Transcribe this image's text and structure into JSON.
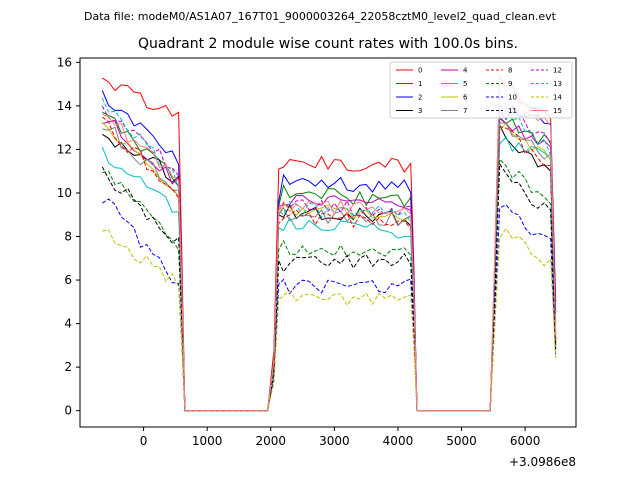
{
  "figure": {
    "suptitle": "Data file: modeM0/AS1A07_167T01_9000003264_22058cztM0_level2_quad_clean.evt"
  },
  "chart_data": {
    "type": "line",
    "title": "Quadrant 2 module wise count rates with 100.0s bins.",
    "xlabel": "",
    "ylabel": "",
    "x_offset_label": "+3.0986e8",
    "xlim": [
      -1000,
      6800
    ],
    "ylim": [
      -0.75,
      16.2
    ],
    "xticks": [
      0,
      1000,
      2000,
      3000,
      4000,
      5000,
      6000
    ],
    "yticks": [
      0,
      2,
      4,
      6,
      8,
      10,
      12,
      14,
      16
    ],
    "grid": false,
    "legend": {
      "position": "top-right",
      "columns": 4
    },
    "segments": [
      {
        "start": -650,
        "end": 550
      },
      {
        "start": 2200,
        "end": 4200
      },
      {
        "start": 5600,
        "end": 6400
      }
    ],
    "edge_points": [
      {
        "x": 650,
        "y": 0
      },
      {
        "x": 1950,
        "y": 0
      },
      {
        "x": 4300,
        "y": 0
      },
      {
        "x": 5450,
        "y": 0
      }
    ],
    "series": [
      {
        "name": "0",
        "color": "#ff0000",
        "dash": false,
        "seg_start": [
          15.2,
          11.5,
          15.3
        ],
        "seg_end": [
          13.5,
          11.2,
          13.2
        ],
        "gap_level": 11.1,
        "drop_end": 5.0
      },
      {
        "name": "1",
        "color": "#008000",
        "dash": false,
        "seg_start": [
          13.8,
          10.0,
          13.5
        ],
        "seg_end": [
          10.5,
          9.6,
          12.2
        ],
        "gap_level": 9.4,
        "drop_end": 4.0
      },
      {
        "name": "2",
        "color": "#0000ff",
        "dash": false,
        "seg_start": [
          14.5,
          10.5,
          13.8
        ],
        "seg_end": [
          11.5,
          10.3,
          13.0
        ],
        "gap_level": 9.6,
        "drop_end": 4.5
      },
      {
        "name": "3",
        "color": "#000000",
        "dash": false,
        "seg_start": [
          12.8,
          9.2,
          12.8
        ],
        "seg_end": [
          10.6,
          8.8,
          10.8
        ],
        "gap_level": 9.0,
        "drop_end": 3.0
      },
      {
        "name": "4",
        "color": "#bf00bf",
        "dash": false,
        "seg_start": [
          13.5,
          9.6,
          13.5
        ],
        "seg_end": [
          10.5,
          9.4,
          12.0
        ],
        "gap_level": 9.4,
        "drop_end": 3.5
      },
      {
        "name": "5",
        "color": "#00bfbf",
        "dash": false,
        "seg_start": [
          11.8,
          8.6,
          12.5
        ],
        "seg_end": [
          9.2,
          8.2,
          11.5
        ],
        "gap_level": 8.4,
        "drop_end": 3.5
      },
      {
        "name": "6",
        "color": "#bfbf00",
        "dash": false,
        "seg_start": [
          13.0,
          9.2,
          13.0
        ],
        "seg_end": [
          10.2,
          9.0,
          11.8
        ],
        "gap_level": 9.0,
        "drop_end": 3.2
      },
      {
        "name": "7",
        "color": "#808080",
        "dash": false,
        "seg_start": [
          13.2,
          9.0,
          13.2
        ],
        "seg_end": [
          10.0,
          8.8,
          11.5
        ],
        "gap_level": 9.0,
        "drop_end": 3.2
      },
      {
        "name": "8",
        "color": "#ff0000",
        "dash": true,
        "seg_start": [
          13.3,
          9.0,
          13.0
        ],
        "seg_end": [
          10.0,
          8.5,
          11.0
        ],
        "gap_level": 8.6,
        "drop_end": 3.2
      },
      {
        "name": "9",
        "color": "#008000",
        "dash": true,
        "seg_start": [
          11.0,
          7.5,
          11.5
        ],
        "seg_end": [
          7.6,
          7.2,
          9.5
        ],
        "gap_level": 7.4,
        "drop_end": 3.0
      },
      {
        "name": "10",
        "color": "#0000ff",
        "dash": true,
        "seg_start": [
          9.8,
          5.7,
          9.6
        ],
        "seg_end": [
          5.9,
          5.7,
          7.6
        ],
        "gap_level": 5.8,
        "drop_end": 2.6
      },
      {
        "name": "11",
        "color": "#000000",
        "dash": true,
        "seg_start": [
          11.0,
          6.7,
          11.0
        ],
        "seg_end": [
          7.7,
          6.9,
          9.0
        ],
        "gap_level": 6.9,
        "drop_end": 2.8
      },
      {
        "name": "12",
        "color": "#bf00bf",
        "dash": true,
        "seg_start": [
          14.0,
          9.4,
          14.2
        ],
        "seg_end": [
          11.0,
          9.2,
          12.2
        ],
        "gap_level": 9.2,
        "drop_end": 3.5
      },
      {
        "name": "13",
        "color": "#00bfbf",
        "dash": true,
        "seg_start": [
          14.2,
          9.3,
          14.0
        ],
        "seg_end": [
          10.5,
          9.0,
          12.0
        ],
        "gap_level": 9.2,
        "drop_end": 3.5
      },
      {
        "name": "14",
        "color": "#bfbf00",
        "dash": true,
        "seg_start": [
          8.2,
          5.3,
          8.2
        ],
        "seg_end": [
          5.8,
          5.0,
          6.8
        ],
        "gap_level": 5.1,
        "drop_end": 2.4
      },
      {
        "name": "15",
        "color": "#ff8080",
        "dash": false,
        "seg_start": [
          13.6,
          9.4,
          15.3
        ],
        "seg_end": [
          10.8,
          9.2,
          12.8
        ],
        "gap_level": 9.2,
        "drop_end": 3.4
      }
    ]
  }
}
